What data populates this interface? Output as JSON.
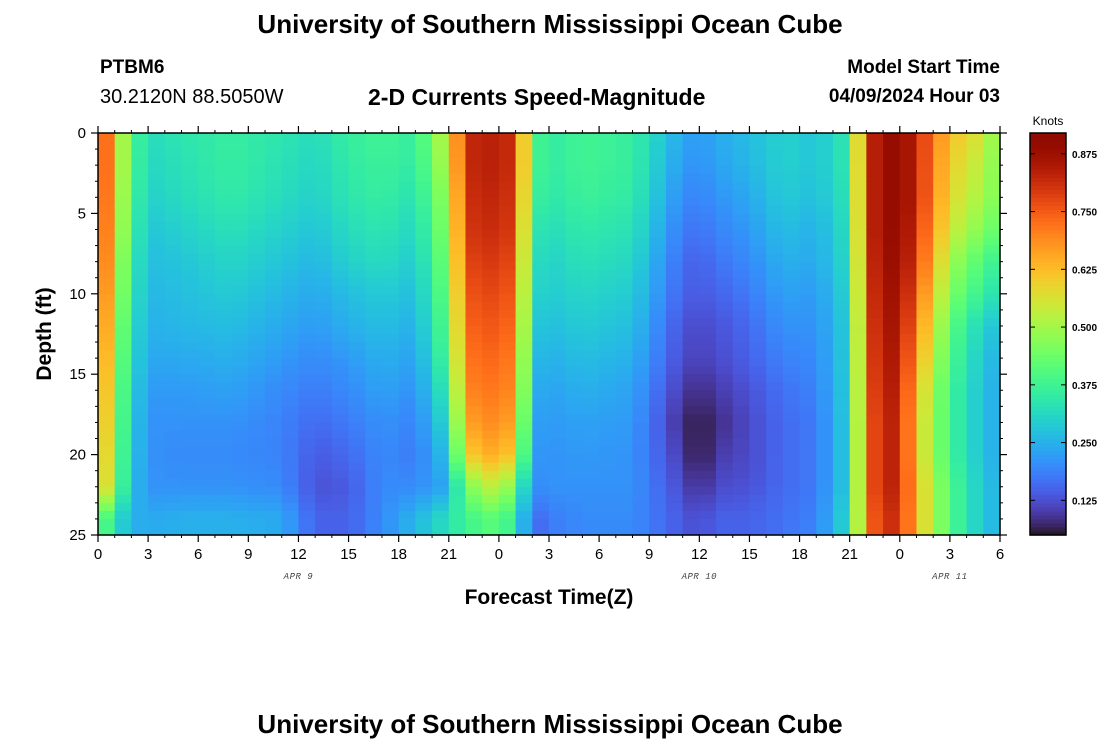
{
  "header": {
    "title": "University of Southern Mississippi Ocean Cube",
    "station": "PTBM6",
    "coordinates": "30.2120N  88.5050W",
    "subtitle": "2-D Currents Speed-Magnitude",
    "model_start_label": "Model Start Time",
    "model_start_value": "04/09/2024 Hour 03"
  },
  "footer": {
    "title": "University of Southern Mississippi Ocean Cube"
  },
  "chart_data": {
    "type": "heatmap",
    "title": "2-D Currents Speed-Magnitude",
    "xlabel": "Forecast Time(Z)",
    "ylabel": "Depth (ft)",
    "x_unit": "forecast hour (hours after 04/09/2024 00Z)",
    "x_range": [
      0,
      54
    ],
    "x_tick_positions": [
      0,
      3,
      6,
      9,
      12,
      15,
      18,
      21,
      24,
      27,
      30,
      33,
      36,
      39,
      42,
      45,
      48,
      51,
      54
    ],
    "x_tick_labels": [
      "0",
      "3",
      "6",
      "9",
      "12",
      "15",
      "18",
      "21",
      "0",
      "3",
      "6",
      "9",
      "12",
      "15",
      "18",
      "21",
      "0",
      "3",
      "6"
    ],
    "date_labels": [
      {
        "x": 12,
        "label": "APR 9"
      },
      {
        "x": 36,
        "label": "APR 10"
      },
      {
        "x": 51,
        "label": "APR 11"
      }
    ],
    "y_range": [
      0,
      25
    ],
    "y_ticks": [
      0,
      5,
      10,
      15,
      20,
      25
    ],
    "y_inverted": true,
    "colorbar": {
      "label": "Knots",
      "ticks": [
        "0.125",
        "0.250",
        "0.375",
        "0.500",
        "0.625",
        "0.750",
        "0.875"
      ],
      "range": [
        0.05,
        0.92
      ],
      "colormap": "turbo"
    },
    "depth_levels": [
      0,
      2,
      4,
      6,
      8,
      10,
      12,
      14,
      16,
      18,
      20,
      22,
      24
    ],
    "time_hours": [
      0,
      1,
      2,
      3,
      5,
      8,
      11,
      13,
      15,
      17,
      19,
      21,
      22,
      24,
      25,
      26,
      27,
      29,
      32,
      35,
      36,
      37,
      39,
      41,
      43,
      45,
      46,
      47,
      48,
      49,
      51,
      53,
      54
    ],
    "speed_knots": [
      [
        0.85,
        0.6,
        0.4,
        0.32,
        0.34,
        0.36,
        0.34,
        0.32,
        0.36,
        0.38,
        0.36,
        0.55,
        0.82,
        0.84,
        0.8,
        0.4,
        0.35,
        0.38,
        0.36,
        0.24,
        0.22,
        0.24,
        0.27,
        0.3,
        0.28,
        0.35,
        0.8,
        0.88,
        0.9,
        0.82,
        0.62,
        0.55,
        0.45
      ],
      [
        0.85,
        0.6,
        0.4,
        0.31,
        0.33,
        0.36,
        0.33,
        0.31,
        0.35,
        0.37,
        0.35,
        0.53,
        0.82,
        0.84,
        0.8,
        0.4,
        0.35,
        0.38,
        0.36,
        0.22,
        0.21,
        0.23,
        0.26,
        0.3,
        0.28,
        0.35,
        0.8,
        0.88,
        0.9,
        0.82,
        0.6,
        0.52,
        0.45
      ],
      [
        0.84,
        0.59,
        0.39,
        0.3,
        0.32,
        0.35,
        0.32,
        0.3,
        0.34,
        0.36,
        0.33,
        0.5,
        0.81,
        0.83,
        0.79,
        0.38,
        0.34,
        0.37,
        0.35,
        0.2,
        0.19,
        0.21,
        0.24,
        0.29,
        0.27,
        0.34,
        0.8,
        0.88,
        0.9,
        0.82,
        0.58,
        0.5,
        0.45
      ],
      [
        0.83,
        0.58,
        0.38,
        0.28,
        0.3,
        0.33,
        0.3,
        0.28,
        0.32,
        0.34,
        0.31,
        0.48,
        0.8,
        0.82,
        0.78,
        0.35,
        0.32,
        0.35,
        0.33,
        0.18,
        0.17,
        0.19,
        0.22,
        0.27,
        0.25,
        0.33,
        0.8,
        0.88,
        0.9,
        0.8,
        0.55,
        0.46,
        0.42
      ],
      [
        0.82,
        0.56,
        0.36,
        0.27,
        0.28,
        0.31,
        0.28,
        0.26,
        0.3,
        0.32,
        0.29,
        0.46,
        0.78,
        0.8,
        0.76,
        0.33,
        0.3,
        0.33,
        0.31,
        0.16,
        0.15,
        0.17,
        0.2,
        0.25,
        0.24,
        0.32,
        0.79,
        0.87,
        0.89,
        0.78,
        0.5,
        0.4,
        0.36
      ],
      [
        0.8,
        0.54,
        0.35,
        0.26,
        0.27,
        0.29,
        0.26,
        0.24,
        0.27,
        0.29,
        0.27,
        0.44,
        0.76,
        0.78,
        0.74,
        0.31,
        0.29,
        0.31,
        0.29,
        0.15,
        0.14,
        0.15,
        0.18,
        0.23,
        0.22,
        0.31,
        0.78,
        0.86,
        0.88,
        0.74,
        0.46,
        0.36,
        0.32
      ],
      [
        0.78,
        0.52,
        0.33,
        0.25,
        0.26,
        0.27,
        0.24,
        0.22,
        0.25,
        0.27,
        0.25,
        0.42,
        0.74,
        0.76,
        0.72,
        0.29,
        0.27,
        0.29,
        0.27,
        0.13,
        0.12,
        0.13,
        0.16,
        0.21,
        0.21,
        0.3,
        0.77,
        0.85,
        0.87,
        0.7,
        0.42,
        0.3,
        0.27
      ],
      [
        0.76,
        0.5,
        0.32,
        0.24,
        0.24,
        0.25,
        0.22,
        0.2,
        0.22,
        0.25,
        0.23,
        0.4,
        0.72,
        0.74,
        0.7,
        0.27,
        0.25,
        0.27,
        0.25,
        0.12,
        0.11,
        0.12,
        0.15,
        0.19,
        0.2,
        0.3,
        0.76,
        0.84,
        0.86,
        0.66,
        0.4,
        0.28,
        0.25
      ],
      [
        0.74,
        0.48,
        0.31,
        0.22,
        0.22,
        0.23,
        0.2,
        0.18,
        0.2,
        0.23,
        0.21,
        0.36,
        0.7,
        0.72,
        0.68,
        0.25,
        0.23,
        0.25,
        0.23,
        0.1,
        0.08,
        0.1,
        0.13,
        0.17,
        0.19,
        0.3,
        0.75,
        0.83,
        0.85,
        0.62,
        0.38,
        0.27,
        0.24
      ],
      [
        0.72,
        0.47,
        0.3,
        0.21,
        0.21,
        0.21,
        0.19,
        0.16,
        0.18,
        0.21,
        0.19,
        0.32,
        0.66,
        0.7,
        0.64,
        0.23,
        0.22,
        0.23,
        0.22,
        0.08,
        0.06,
        0.08,
        0.12,
        0.16,
        0.18,
        0.3,
        0.74,
        0.82,
        0.84,
        0.6,
        0.38,
        0.27,
        0.24
      ],
      [
        0.7,
        0.46,
        0.29,
        0.21,
        0.2,
        0.2,
        0.19,
        0.14,
        0.16,
        0.2,
        0.18,
        0.28,
        0.6,
        0.66,
        0.58,
        0.22,
        0.21,
        0.22,
        0.21,
        0.1,
        0.05,
        0.1,
        0.12,
        0.16,
        0.18,
        0.3,
        0.74,
        0.82,
        0.84,
        0.6,
        0.38,
        0.27,
        0.24
      ],
      [
        0.68,
        0.45,
        0.28,
        0.21,
        0.21,
        0.21,
        0.2,
        0.13,
        0.14,
        0.2,
        0.2,
        0.24,
        0.45,
        0.55,
        0.42,
        0.2,
        0.21,
        0.21,
        0.21,
        0.12,
        0.08,
        0.12,
        0.13,
        0.16,
        0.18,
        0.3,
        0.74,
        0.82,
        0.84,
        0.62,
        0.4,
        0.28,
        0.25
      ],
      [
        0.45,
        0.33,
        0.25,
        0.24,
        0.25,
        0.25,
        0.24,
        0.15,
        0.15,
        0.2,
        0.26,
        0.33,
        0.38,
        0.42,
        0.35,
        0.15,
        0.18,
        0.2,
        0.2,
        0.14,
        0.12,
        0.15,
        0.15,
        0.17,
        0.19,
        0.32,
        0.72,
        0.8,
        0.82,
        0.62,
        0.4,
        0.28,
        0.25
      ]
    ]
  }
}
